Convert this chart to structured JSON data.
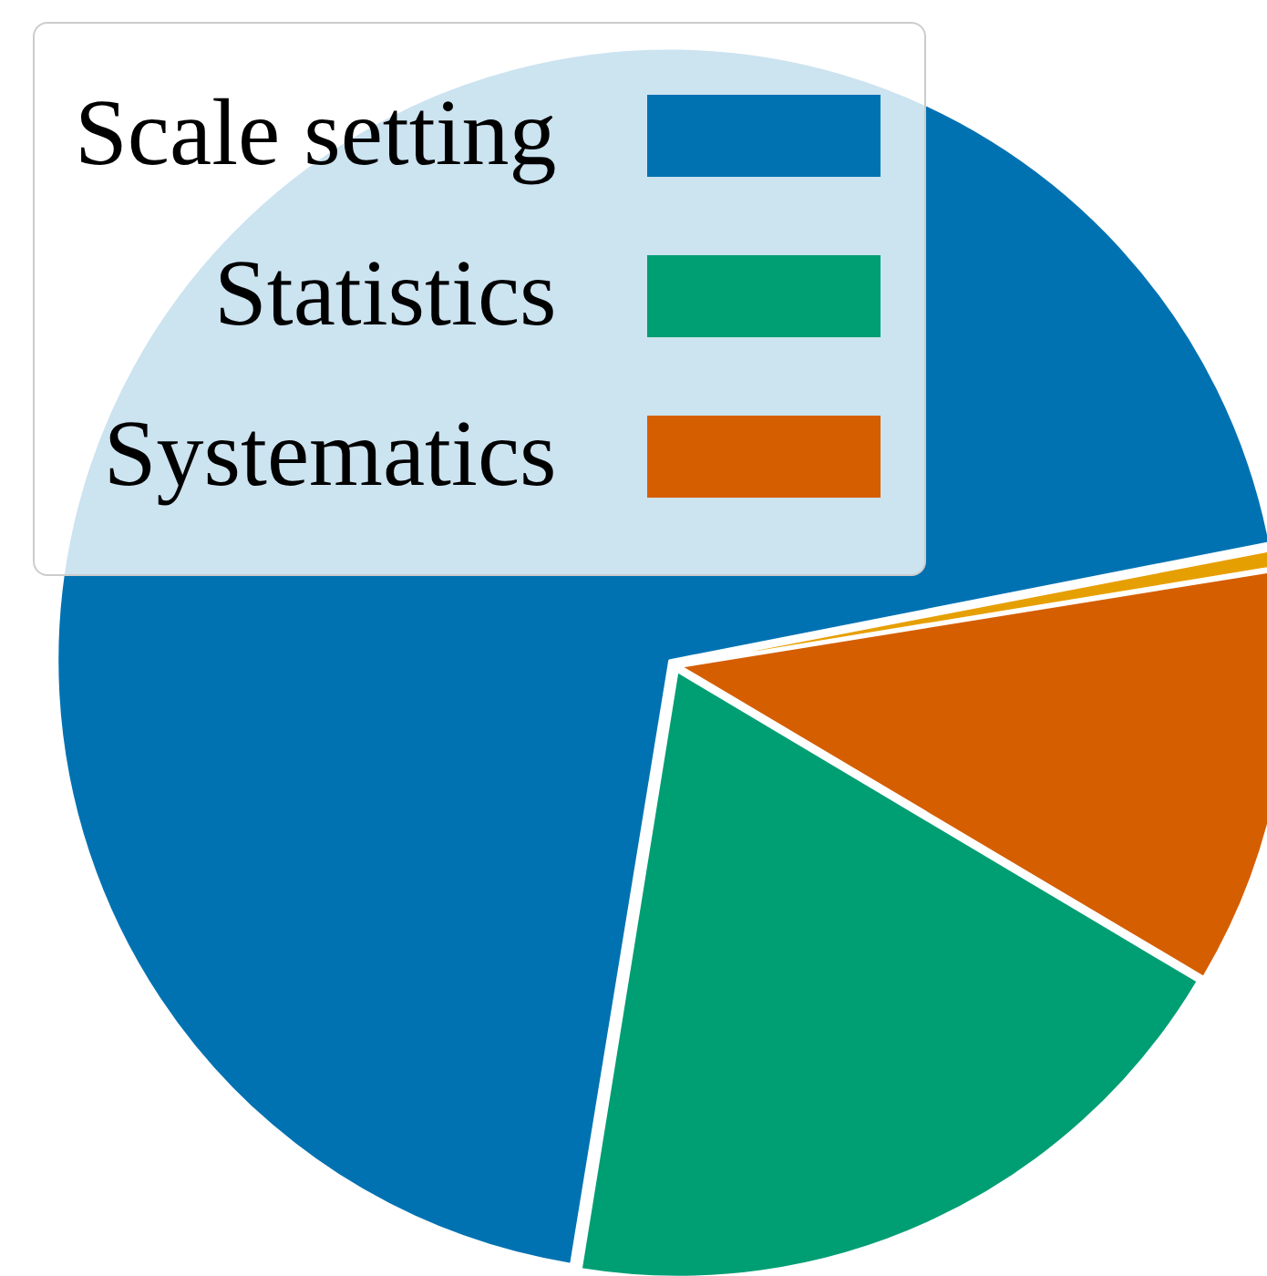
{
  "chart_data": {
    "type": "pie",
    "categories": [
      "Scale setting",
      "Statistics",
      "Systematics",
      null
    ],
    "values": [
      69.4,
      19.0,
      11.1,
      0.5
    ],
    "colors": [
      "#0072b2",
      "#009e73",
      "#d55e00",
      "#e69f00"
    ],
    "legend": "top left"
  }
}
